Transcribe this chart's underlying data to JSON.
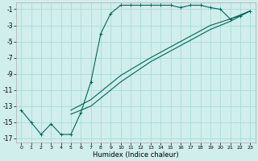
{
  "xlabel": "Humidex (Indice chaleur)",
  "bg_color": "#d0eeec",
  "line_color": "#006655",
  "grid_color": "#aadad6",
  "xlim": [
    -0.5,
    23.5
  ],
  "ylim": [
    -17.5,
    -0.2
  ],
  "xtick_vals": [
    0,
    1,
    2,
    3,
    4,
    5,
    6,
    7,
    8,
    9,
    10,
    11,
    12,
    13,
    14,
    15,
    16,
    17,
    18,
    19,
    20,
    21,
    22,
    23
  ],
  "ytick_vals": [
    -1,
    -3,
    -5,
    -7,
    -9,
    -11,
    -13,
    -15,
    -17
  ],
  "main_x": [
    0,
    1,
    2,
    3,
    4,
    5,
    6,
    7,
    8,
    9,
    10,
    11,
    12,
    13,
    14,
    15,
    16,
    17,
    18,
    19,
    20,
    21,
    22,
    23
  ],
  "main_y": [
    -13.5,
    -15.0,
    -16.5,
    -15.2,
    -16.5,
    -16.5,
    -13.8,
    -10.0,
    -4.0,
    -1.5,
    -0.5,
    -0.5,
    -0.5,
    -0.5,
    -0.5,
    -0.5,
    -0.8,
    -0.5,
    -0.5,
    -0.8,
    -1.0,
    -2.2,
    -1.8,
    -1.2
  ],
  "diag1_x": [
    5,
    7,
    10,
    13,
    16,
    19,
    21,
    23
  ],
  "diag1_y": [
    -14.0,
    -13.0,
    -10.0,
    -7.5,
    -5.5,
    -3.5,
    -2.5,
    -1.2
  ],
  "diag2_x": [
    5,
    7,
    10,
    13,
    16,
    19,
    21,
    23
  ],
  "diag2_y": [
    -13.5,
    -12.2,
    -9.2,
    -7.0,
    -5.0,
    -3.0,
    -2.2,
    -1.2
  ]
}
